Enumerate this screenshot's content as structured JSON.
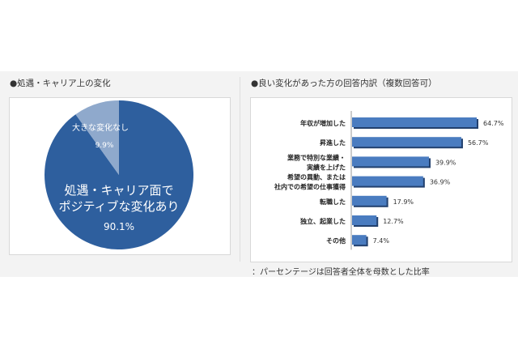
{
  "chart_data": [
    {
      "type": "pie",
      "title": "●処遇・キャリア上の変化",
      "slices": [
        {
          "label": "処遇・キャリア面で\nポジティブな変化あり",
          "value": 90.1,
          "value_label": "90.1%",
          "color": "#2e5f9e"
        },
        {
          "label": "大きな変化なし",
          "value": 9.9,
          "value_label": "9.9%",
          "color": "#8fa9cc"
        }
      ]
    },
    {
      "type": "bar",
      "orientation": "horizontal",
      "title": "●良い変化があった方の回答内訳（複数回答可）",
      "categories": [
        "年収が増加した",
        "昇進した",
        "業務で特別な業績・\n実績を上げた",
        "希望の異動、または\n社内での希望の仕事獲得",
        "転職した",
        "独立、起業した",
        "その他"
      ],
      "values": [
        64.7,
        56.7,
        39.9,
        36.9,
        17.9,
        12.7,
        7.4
      ],
      "value_labels": [
        "64.7%",
        "56.7%",
        "39.9%",
        "36.9%",
        "17.9%",
        "12.7%",
        "7.4%"
      ],
      "color": "#4a7cc0",
      "xlim": [
        0,
        70
      ],
      "grid": false,
      "note": "：パーセンテージは回答者全体を母数とした比率"
    }
  ]
}
